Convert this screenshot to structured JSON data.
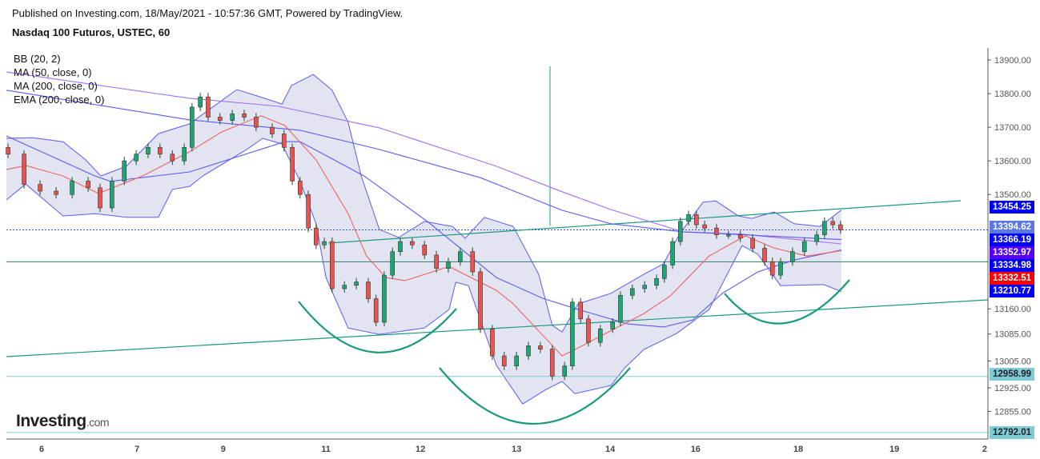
{
  "header": {
    "published": "Published on Investing.com, 18/May/2021 - 10:57:36 GMT, Powered by TradingView.",
    "title": "Nasdaq 100 Futuros, USTEC, 60"
  },
  "legend": [
    "BB (20, 2)",
    "MA (50, close, 0)",
    "MA (200, close, 0)",
    "EMA (200, close, 0)"
  ],
  "logo": {
    "main": "Investing",
    "suffix": ".com"
  },
  "colors": {
    "up": "#1ea672",
    "down": "#e8524f",
    "bb_fill": "#e3e4f1",
    "bb_line": "#5a5cf5",
    "ma200": "#a070f5",
    "red": "#f06060",
    "trend": "#1a9a7c",
    "cyan": "#7ecbd6"
  },
  "chart_data": {
    "type": "candlestick",
    "title": "Nasdaq 100 Futuros, USTEC, 60",
    "ylim": [
      12770,
      13930
    ],
    "y_ticks": [
      13900,
      13800,
      13700,
      13600,
      13500,
      13160,
      13085,
      13005,
      12925,
      12855
    ],
    "y_tick_labels": [
      "13900.00",
      "13800.00",
      "13700.00",
      "13600.00",
      "13500.00",
      "13160.00",
      "13085.00",
      "13005.00",
      "12925.00",
      "12855.00"
    ],
    "x_ticks": [
      {
        "h": 8.6,
        "label": "6"
      },
      {
        "h": 31.8,
        "label": "7"
      },
      {
        "h": 52.8,
        "label": "9"
      },
      {
        "h": 77.8,
        "label": "11"
      },
      {
        "h": 100.8,
        "label": "12"
      },
      {
        "h": 124.2,
        "label": "13"
      },
      {
        "h": 147,
        "label": "14"
      },
      {
        "h": 167.8,
        "label": "16"
      },
      {
        "h": 192.8,
        "label": "18"
      },
      {
        "h": 216.2,
        "label": "19"
      },
      {
        "h": 238.2,
        "label": "2"
      }
    ],
    "bars": [
      [
        0.4,
        13620
      ],
      [
        4.3,
        13530
      ],
      [
        8.2,
        13510
      ],
      [
        12.1,
        13500
      ],
      [
        16,
        13540
      ],
      [
        19.9,
        13520
      ],
      [
        22.8,
        13460
      ],
      [
        25.7,
        13540
      ],
      [
        28.7,
        13600
      ],
      [
        31.6,
        13620
      ],
      [
        34.5,
        13640
      ],
      [
        37.4,
        13620
      ],
      [
        40.4,
        13600
      ],
      [
        43.3,
        13640
      ],
      [
        45.2,
        13760
      ],
      [
        47.2,
        13790
      ],
      [
        49.1,
        13730
      ],
      [
        52,
        13720
      ],
      [
        55,
        13740
      ],
      [
        57.9,
        13730
      ],
      [
        60.8,
        13700
      ],
      [
        64.7,
        13680
      ],
      [
        67.6,
        13640
      ],
      [
        69.6,
        13540
      ],
      [
        71.5,
        13500
      ],
      [
        73.5,
        13400
      ],
      [
        75.4,
        13350
      ],
      [
        77.4,
        13360
      ],
      [
        79.3,
        13220
      ],
      [
        82.3,
        13230
      ],
      [
        85.2,
        13240
      ],
      [
        88.1,
        13190
      ],
      [
        90,
        13120
      ],
      [
        92,
        13260
      ],
      [
        94,
        13330
      ],
      [
        95.9,
        13360
      ],
      [
        98.8,
        13350
      ],
      [
        101.8,
        13320
      ],
      [
        104.7,
        13280
      ],
      [
        107.6,
        13300
      ],
      [
        110.5,
        13330
      ],
      [
        113.5,
        13270
      ],
      [
        115.4,
        13100
      ],
      [
        118.3,
        13020
      ],
      [
        121.2,
        12990
      ],
      [
        124.2,
        13020
      ],
      [
        127.1,
        13050
      ],
      [
        130,
        13040
      ],
      [
        132.9,
        12960
      ],
      [
        135.9,
        12990
      ],
      [
        137.8,
        13180
      ],
      [
        139.8,
        13130
      ],
      [
        141.7,
        13060
      ],
      [
        144.6,
        13100
      ],
      [
        147.6,
        13120
      ],
      [
        149.5,
        13200
      ],
      [
        152.4,
        13220
      ],
      [
        155.4,
        13230
      ],
      [
        158.3,
        13250
      ],
      [
        160.2,
        13290
      ],
      [
        162.2,
        13360
      ],
      [
        164.1,
        13420
      ],
      [
        166.1,
        13440
      ],
      [
        168,
        13410
      ],
      [
        170,
        13400
      ],
      [
        172.9,
        13380
      ],
      [
        175.8,
        13380
      ],
      [
        178.7,
        13370
      ],
      [
        181.7,
        13340
      ],
      [
        184.6,
        13300
      ],
      [
        186.5,
        13260
      ],
      [
        188.5,
        13300
      ],
      [
        191.4,
        13330
      ],
      [
        194.3,
        13360
      ],
      [
        197.3,
        13380
      ],
      [
        199.2,
        13420
      ],
      [
        201.2,
        13410
      ],
      [
        203.1,
        13395
      ]
    ],
    "series": [
      {
        "name": "MA (200, close, 0)",
        "color": "#a070f5",
        "points": [
          [
            0,
            13864
          ],
          [
            44.6,
            13786
          ],
          [
            66.3,
            13762
          ],
          [
            90.8,
            13698
          ],
          [
            119.3,
            13584
          ],
          [
            135.3,
            13508
          ],
          [
            147.2,
            13455
          ],
          [
            164.7,
            13389
          ],
          [
            179.1,
            13382
          ],
          [
            203.3,
            13353
          ]
        ]
      },
      {
        "name": "EMA (200, close, 0)",
        "color": "#5a5cf5",
        "points": [
          [
            0,
            13810
          ],
          [
            44.6,
            13722
          ],
          [
            71.5,
            13691
          ],
          [
            90.8,
            13634
          ],
          [
            115.4,
            13550
          ],
          [
            135.3,
            13453
          ],
          [
            147.2,
            13413
          ],
          [
            164.7,
            13389
          ],
          [
            203.3,
            13366
          ]
        ]
      },
      {
        "name": "MA (50, close, 0)",
        "color": "#5a5cf5",
        "points": [
          [
            0,
            13674
          ],
          [
            21.6,
            13555
          ],
          [
            25.3,
            13539
          ],
          [
            44.6,
            13567
          ],
          [
            67.8,
            13657
          ],
          [
            71.5,
            13657
          ],
          [
            87.1,
            13555
          ],
          [
            102.5,
            13420
          ],
          [
            119.3,
            13253
          ],
          [
            130.6,
            13191
          ],
          [
            139.2,
            13158
          ],
          [
            151.3,
            13115
          ],
          [
            160,
            13106
          ],
          [
            167.1,
            13127
          ],
          [
            174.3,
            13206
          ],
          [
            183,
            13270
          ],
          [
            191.8,
            13305
          ],
          [
            203.3,
            13335
          ]
        ]
      },
      {
        "name": "BB basis",
        "color": "#f06060",
        "points": [
          [
            0,
            13574
          ],
          [
            4.7,
            13586
          ],
          [
            13.8,
            13555
          ],
          [
            22.4,
            13503
          ],
          [
            33.1,
            13555
          ],
          [
            44.6,
            13627
          ],
          [
            52.4,
            13686
          ],
          [
            62,
            13734
          ],
          [
            67.8,
            13705
          ],
          [
            75.4,
            13603
          ],
          [
            83.2,
            13443
          ],
          [
            87.7,
            13317
          ],
          [
            92.4,
            13253
          ],
          [
            97.1,
            13244
          ],
          [
            107.8,
            13286
          ],
          [
            119.3,
            13215
          ],
          [
            123.4,
            13175
          ],
          [
            135.3,
            13020
          ],
          [
            139.2,
            13044
          ],
          [
            155.2,
            13146
          ],
          [
            161.6,
            13198
          ],
          [
            171.1,
            13317
          ],
          [
            179.9,
            13377
          ],
          [
            186.9,
            13341
          ],
          [
            194.9,
            13317
          ],
          [
            203.3,
            13333
          ]
        ]
      }
    ],
    "bb_upper": [
      [
        0,
        13667
      ],
      [
        6.2,
        13669
      ],
      [
        13.8,
        13657
      ],
      [
        19.3,
        13603
      ],
      [
        23,
        13555
      ],
      [
        29.2,
        13584
      ],
      [
        37,
        13681
      ],
      [
        44.6,
        13710
      ],
      [
        56.1,
        13812
      ],
      [
        62.4,
        13788
      ],
      [
        67.1,
        13769
      ],
      [
        69.4,
        13824
      ],
      [
        74.7,
        13857
      ],
      [
        79.3,
        13810
      ],
      [
        83.2,
        13715
      ],
      [
        86.4,
        13555
      ],
      [
        90.8,
        13396
      ],
      [
        95.5,
        13372
      ],
      [
        101.8,
        13420
      ],
      [
        108.6,
        13405
      ],
      [
        111.7,
        13370
      ],
      [
        116.4,
        13432
      ],
      [
        123.4,
        13405
      ],
      [
        129.6,
        13263
      ],
      [
        132.9,
        13111
      ],
      [
        135.3,
        13091
      ],
      [
        139.2,
        13175
      ],
      [
        147.2,
        13206
      ],
      [
        155.2,
        13263
      ],
      [
        160,
        13294
      ],
      [
        163.9,
        13382
      ],
      [
        169.6,
        13477
      ],
      [
        172.7,
        13481
      ],
      [
        178.2,
        13436
      ],
      [
        181.5,
        13429
      ],
      [
        186.9,
        13448
      ],
      [
        191.8,
        13413
      ],
      [
        198.1,
        13405
      ],
      [
        203.3,
        13454
      ]
    ],
    "bb_lower": [
      [
        0,
        13484
      ],
      [
        4.7,
        13531
      ],
      [
        13.8,
        13436
      ],
      [
        21.6,
        13443
      ],
      [
        29.2,
        13432
      ],
      [
        37,
        13432
      ],
      [
        40.4,
        13515
      ],
      [
        44.6,
        13524
      ],
      [
        47.8,
        13555
      ],
      [
        58.5,
        13634
      ],
      [
        62.4,
        13667
      ],
      [
        67.1,
        13650
      ],
      [
        71.5,
        13539
      ],
      [
        75.4,
        13413
      ],
      [
        77.8,
        13253
      ],
      [
        83.2,
        13103
      ],
      [
        90.8,
        13084
      ],
      [
        101.8,
        13103
      ],
      [
        107.8,
        13158
      ],
      [
        109.4,
        13239
      ],
      [
        112.5,
        13229
      ],
      [
        119.3,
        12992
      ],
      [
        125.7,
        12877
      ],
      [
        131.4,
        12920
      ],
      [
        135.3,
        12944
      ],
      [
        138.4,
        12908
      ],
      [
        147.2,
        12932
      ],
      [
        150.5,
        12984
      ],
      [
        155.2,
        13039
      ],
      [
        163.2,
        13087
      ],
      [
        171.1,
        13158
      ],
      [
        179.1,
        13348
      ],
      [
        183,
        13322
      ],
      [
        188.5,
        13229
      ],
      [
        199,
        13232
      ],
      [
        203.3,
        13211
      ]
    ],
    "last_price": 13394.62,
    "horizontal_levels": [
      {
        "price": 13300,
        "color": "#2f7f70"
      },
      {
        "price": 12958.99,
        "color": "#7ecbd6"
      },
      {
        "price": 12792.01,
        "color": "#7ecbd6"
      }
    ],
    "price_badges": [
      {
        "label": "13454.25",
        "bg": "#0000ff",
        "fg": "#ffffff"
      },
      {
        "label": "13394.62",
        "bg": "#5b78e6",
        "fg": "#ffffff"
      },
      {
        "label": "13366.19",
        "bg": "#0000ff",
        "fg": "#ffffff"
      },
      {
        "label": "13352.97",
        "bg": "#5500ff",
        "fg": "#ffffff"
      },
      {
        "label": "13334.98",
        "bg": "#0000ff",
        "fg": "#ffffff"
      },
      {
        "label": "13332.51",
        "bg": "#ff0000",
        "fg": "#ffffff"
      },
      {
        "label": "13210.77",
        "bg": "#0000ff",
        "fg": "#ffffff"
      },
      {
        "label": "12958.99",
        "bg": "#7ecbd6",
        "fg": "#222222"
      },
      {
        "label": "12792.01",
        "bg": "#7ecbd6",
        "fg": "#222222"
      }
    ]
  }
}
